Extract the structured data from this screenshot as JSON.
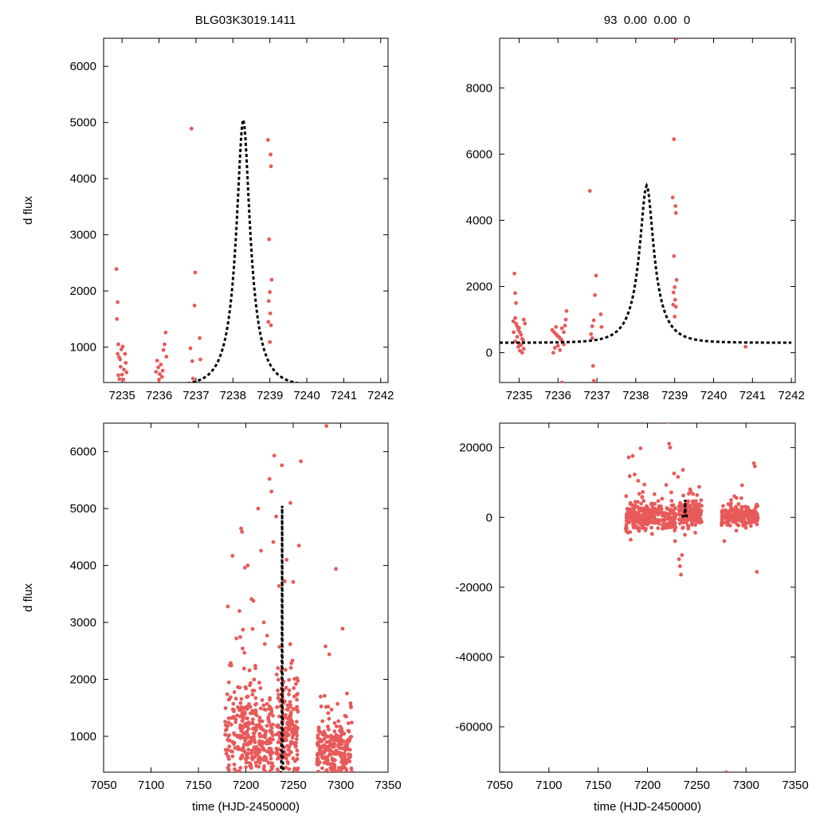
{
  "figure": {
    "title_left": "BLG03K3019.1411",
    "title_right": "93  0.00  0.00  0",
    "ylabel": "d flux",
    "xlabel": "time (HJD-2450000)"
  },
  "colors": {
    "data_points": "#e85a5a",
    "model_curve": "#000000",
    "axes": "#000000"
  },
  "model": {
    "type": "point-lens",
    "t0": 7238.28,
    "tE": 0.6,
    "u0": 0.29,
    "peak_dflux": 5050,
    "base_dflux": 300
  },
  "chart_data": [
    {
      "id": "top-left",
      "type": "scatter",
      "xlim": [
        7234.5,
        7242.2
      ],
      "ylim": [
        370,
        6500
      ],
      "xticks": [
        7235,
        7236,
        7237,
        7238,
        7239,
        7240,
        7241,
        7242
      ],
      "yticks": [
        1000,
        2000,
        3000,
        4000,
        5000,
        6000
      ],
      "ylabel": "d flux",
      "xlabel": "",
      "points": [
        [
          7234.85,
          2390
        ],
        [
          7234.88,
          1800
        ],
        [
          7234.86,
          1500
        ],
        [
          7234.9,
          1050
        ],
        [
          7234.92,
          820
        ],
        [
          7234.95,
          780
        ],
        [
          7234.88,
          880
        ],
        [
          7234.98,
          960
        ],
        [
          7235.02,
          1010
        ],
        [
          7234.96,
          650
        ],
        [
          7235.05,
          600
        ],
        [
          7235.0,
          510
        ],
        [
          7234.93,
          430
        ],
        [
          7235.1,
          720
        ],
        [
          7235.08,
          880
        ],
        [
          7235.12,
          550
        ],
        [
          7234.9,
          500
        ],
        [
          7235.04,
          420
        ],
        [
          7235.95,
          760
        ],
        [
          7235.98,
          640
        ],
        [
          7236.02,
          520
        ],
        [
          7236.05,
          690
        ],
        [
          7236.1,
          580
        ],
        [
          7236.12,
          950
        ],
        [
          7236.15,
          1050
        ],
        [
          7236.18,
          1260
        ],
        [
          7236.08,
          470
        ],
        [
          7235.92,
          560
        ],
        [
          7236.2,
          830
        ],
        [
          7236.0,
          420
        ],
        [
          7236.88,
          4890
        ],
        [
          7236.98,
          2330
        ],
        [
          7236.96,
          1740
        ],
        [
          7236.85,
          980
        ],
        [
          7236.9,
          750
        ],
        [
          7237.1,
          1160
        ],
        [
          7237.12,
          780
        ],
        [
          7236.92,
          440
        ],
        [
          7238.95,
          4690
        ],
        [
          7239.02,
          4430
        ],
        [
          7239.03,
          4220
        ],
        [
          7238.98,
          2920
        ],
        [
          7239.05,
          2200
        ],
        [
          7239.0,
          1980
        ],
        [
          7238.97,
          1820
        ],
        [
          7239.01,
          1600
        ],
        [
          7238.96,
          1450
        ],
        [
          7239.03,
          1390
        ],
        [
          7239.0,
          1090
        ]
      ],
      "model_xrange": [
        7234.5,
        7242.0
      ]
    },
    {
      "id": "top-right",
      "type": "scatter",
      "xlim": [
        7234.5,
        7242.1
      ],
      "ylim": [
        -900,
        9500
      ],
      "xticks": [
        7235,
        7236,
        7237,
        7238,
        7239,
        7240,
        7241,
        7242
      ],
      "yticks": [
        0,
        2000,
        4000,
        6000,
        8000
      ],
      "ylabel": "",
      "xlabel": "",
      "points": [
        [
          7234.88,
          2390
        ],
        [
          7234.9,
          1800
        ],
        [
          7234.92,
          1500
        ],
        [
          7234.9,
          1050
        ],
        [
          7234.85,
          950
        ],
        [
          7234.92,
          880
        ],
        [
          7234.95,
          800
        ],
        [
          7234.98,
          700
        ],
        [
          7235.0,
          750
        ],
        [
          7235.02,
          620
        ],
        [
          7235.05,
          540
        ],
        [
          7234.95,
          480
        ],
        [
          7235.08,
          420
        ],
        [
          7235.1,
          380
        ],
        [
          7234.9,
          340
        ],
        [
          7235.0,
          290
        ],
        [
          7235.05,
          230
        ],
        [
          7234.98,
          180
        ],
        [
          7235.12,
          120
        ],
        [
          7235.02,
          60
        ],
        [
          7235.08,
          0
        ],
        [
          7235.15,
          880
        ],
        [
          7235.12,
          1000
        ],
        [
          7234.86,
          620
        ],
        [
          7235.85,
          690
        ],
        [
          7235.9,
          620
        ],
        [
          7235.95,
          560
        ],
        [
          7235.98,
          520
        ],
        [
          7236.02,
          480
        ],
        [
          7236.05,
          440
        ],
        [
          7236.08,
          400
        ],
        [
          7236.1,
          360
        ],
        [
          7236.12,
          300
        ],
        [
          7236.15,
          250
        ],
        [
          7236.0,
          210
        ],
        [
          7235.92,
          150
        ],
        [
          7236.05,
          80
        ],
        [
          7235.88,
          0
        ],
        [
          7236.18,
          820
        ],
        [
          7236.2,
          1000
        ],
        [
          7236.22,
          1260
        ],
        [
          7236.1,
          740
        ],
        [
          7235.95,
          780
        ],
        [
          7236.15,
          620
        ],
        [
          7236.1,
          -900
        ],
        [
          7236.82,
          4890
        ],
        [
          7236.98,
          2330
        ],
        [
          7236.95,
          1740
        ],
        [
          7237.1,
          1160
        ],
        [
          7236.92,
          980
        ],
        [
          7236.88,
          800
        ],
        [
          7237.12,
          780
        ],
        [
          7236.85,
          560
        ],
        [
          7236.88,
          440
        ],
        [
          7236.9,
          -400
        ],
        [
          7236.92,
          -850
        ],
        [
          7239.05,
          9500
        ],
        [
          7238.98,
          6450
        ],
        [
          7238.95,
          4690
        ],
        [
          7239.02,
          4430
        ],
        [
          7239.03,
          4220
        ],
        [
          7238.98,
          2920
        ],
        [
          7239.05,
          2200
        ],
        [
          7239.0,
          1980
        ],
        [
          7238.97,
          1820
        ],
        [
          7239.01,
          1600
        ],
        [
          7238.96,
          1450
        ],
        [
          7239.03,
          1390
        ],
        [
          7239.0,
          1090
        ],
        [
          7240.82,
          180
        ]
      ],
      "model_xrange": [
        7234.5,
        7242.0
      ]
    },
    {
      "id": "bottom-left",
      "type": "scatter",
      "xlim": [
        7050,
        7350
      ],
      "ylim": [
        370,
        6500
      ],
      "xticks": [
        7050,
        7100,
        7150,
        7200,
        7250,
        7300,
        7350
      ],
      "yticks": [
        1000,
        2000,
        3000,
        4000,
        5000,
        6000
      ],
      "ylabel": "d flux",
      "xlabel": "time (HJD-2450000)",
      "clusters": [
        {
          "t": [
            7178,
            7192
          ],
          "n": 70,
          "med": 900,
          "spread": 420
        },
        {
          "t": [
            7193,
            7212
          ],
          "n": 180,
          "med": 950,
          "spread": 430
        },
        {
          "t": [
            7213,
            7229
          ],
          "n": 110,
          "med": 850,
          "spread": 380
        },
        {
          "t": [
            7232,
            7255
          ],
          "n": 200,
          "med": 1050,
          "spread": 450
        },
        {
          "t": [
            7275,
            7312
          ],
          "n": 240,
          "med": 720,
          "spread": 260
        }
      ],
      "outliers": [
        [
          7181,
          3280
        ],
        [
          7183,
          2250
        ],
        [
          7186,
          4170
        ],
        [
          7190,
          2720
        ],
        [
          7195,
          4650
        ],
        [
          7196,
          4590
        ],
        [
          7199,
          3960
        ],
        [
          7202,
          4000
        ],
        [
          7206,
          3410
        ],
        [
          7208,
          3380
        ],
        [
          7210,
          2240
        ],
        [
          7213,
          5000
        ],
        [
          7216,
          4260
        ],
        [
          7219,
          3000
        ],
        [
          7220,
          2620
        ],
        [
          7225,
          5520
        ],
        [
          7227,
          5300
        ],
        [
          7229,
          4410
        ],
        [
          7230,
          5930
        ],
        [
          7232,
          4860
        ],
        [
          7235,
          3640
        ],
        [
          7238,
          5760
        ],
        [
          7243,
          4100
        ],
        [
          7247,
          5100
        ],
        [
          7250,
          3710
        ],
        [
          7256,
          4350
        ],
        [
          7258,
          5830
        ],
        [
          7284,
          2580
        ],
        [
          7288,
          2440
        ],
        [
          7295,
          3940
        ],
        [
          7302,
          2890
        ],
        [
          7285,
          6450
        ]
      ],
      "model_xrange": [
        7236.5,
        7240.3
      ]
    },
    {
      "id": "bottom-right",
      "type": "scatter",
      "xlim": [
        7050,
        7350
      ],
      "ylim": [
        -73000,
        27000
      ],
      "xticks": [
        7050,
        7100,
        7150,
        7200,
        7250,
        7300,
        7350
      ],
      "yticks": [
        -60000,
        -40000,
        -20000,
        0,
        20000
      ],
      "ylabel": "",
      "xlabel": "time (HJD-2450000)",
      "clusters": [
        {
          "t": [
            7178,
            7192
          ],
          "n": 90,
          "med": 300,
          "spread": 2200
        },
        {
          "t": [
            7193,
            7212
          ],
          "n": 130,
          "med": 400,
          "spread": 1700
        },
        {
          "t": [
            7213,
            7229
          ],
          "n": 90,
          "med": 500,
          "spread": 1900
        },
        {
          "t": [
            7232,
            7255
          ],
          "n": 160,
          "med": 600,
          "spread": 1900
        },
        {
          "t": [
            7275,
            7312
          ],
          "n": 200,
          "med": 300,
          "spread": 1300
        }
      ],
      "outliers": [
        [
          7181,
          17200
        ],
        [
          7185,
          17600
        ],
        [
          7193,
          19800
        ],
        [
          7182,
          11800
        ],
        [
          7183,
          -6400
        ],
        [
          7187,
          12300
        ],
        [
          7221,
          27400
        ],
        [
          7222,
          21100
        ],
        [
          7223,
          20000
        ],
        [
          7219,
          9300
        ],
        [
          7227,
          12600
        ],
        [
          7231,
          11600
        ],
        [
          7232,
          -12000
        ],
        [
          7233,
          -14000
        ],
        [
          7234,
          -16400
        ],
        [
          7235,
          -10800
        ],
        [
          7236,
          13600
        ],
        [
          7228,
          -6800
        ],
        [
          7238,
          -5000
        ],
        [
          7278,
          -6800
        ],
        [
          7282,
          3800
        ],
        [
          7296,
          9200
        ],
        [
          7302,
          2800
        ],
        [
          7308,
          15500
        ],
        [
          7309,
          14600
        ],
        [
          7311,
          -15600
        ],
        [
          7280,
          -73000
        ]
      ],
      "model_xrange": [
        7234.6,
        7242.0
      ]
    }
  ]
}
